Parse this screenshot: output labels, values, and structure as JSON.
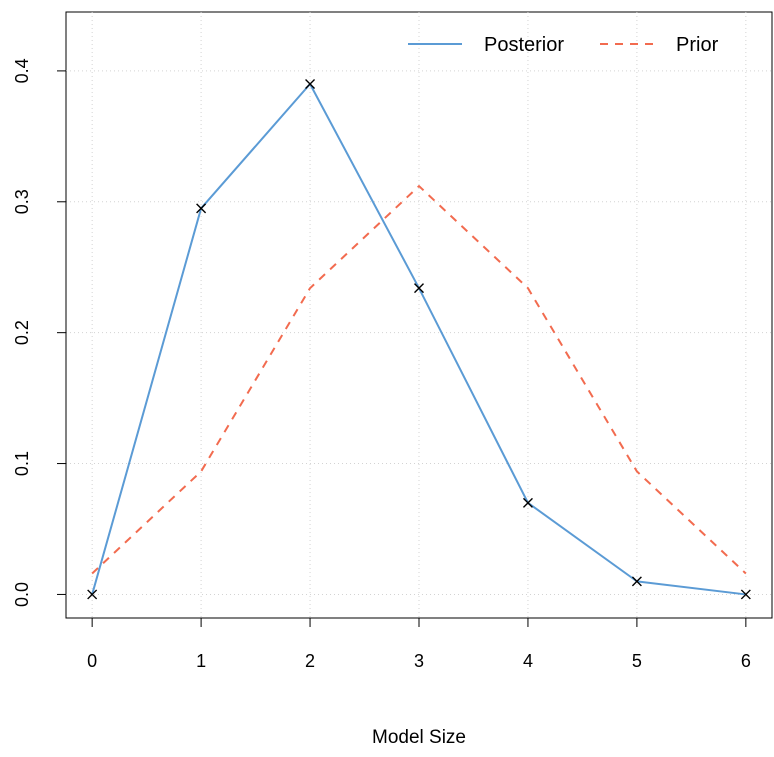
{
  "chart_data": {
    "type": "line",
    "xlabel": "Model Size",
    "ylabel": "",
    "title": "",
    "x": [
      0,
      1,
      2,
      3,
      4,
      5,
      6
    ],
    "xlim": [
      -0.24,
      6.24
    ],
    "ylim": [
      -0.018,
      0.445
    ],
    "xticks": [
      0,
      1,
      2,
      3,
      4,
      5,
      6
    ],
    "yticks": [
      0.0,
      0.1,
      0.2,
      0.3,
      0.4
    ],
    "ytick_labels": [
      "0.0",
      "0.1",
      "0.2",
      "0.3",
      "0.4"
    ],
    "grid": true,
    "legend_position": "top-right",
    "series": [
      {
        "name": "Posterior",
        "values": [
          0.0,
          0.295,
          0.39,
          0.234,
          0.07,
          0.01,
          0.0
        ],
        "color": "#5b9bd5",
        "line_style": "solid",
        "marker": "x"
      },
      {
        "name": "Prior",
        "values": [
          0.016,
          0.094,
          0.234,
          0.312,
          0.234,
          0.094,
          0.016
        ],
        "color": "#f26b4f",
        "line_style": "dashed",
        "marker": "none"
      }
    ]
  }
}
